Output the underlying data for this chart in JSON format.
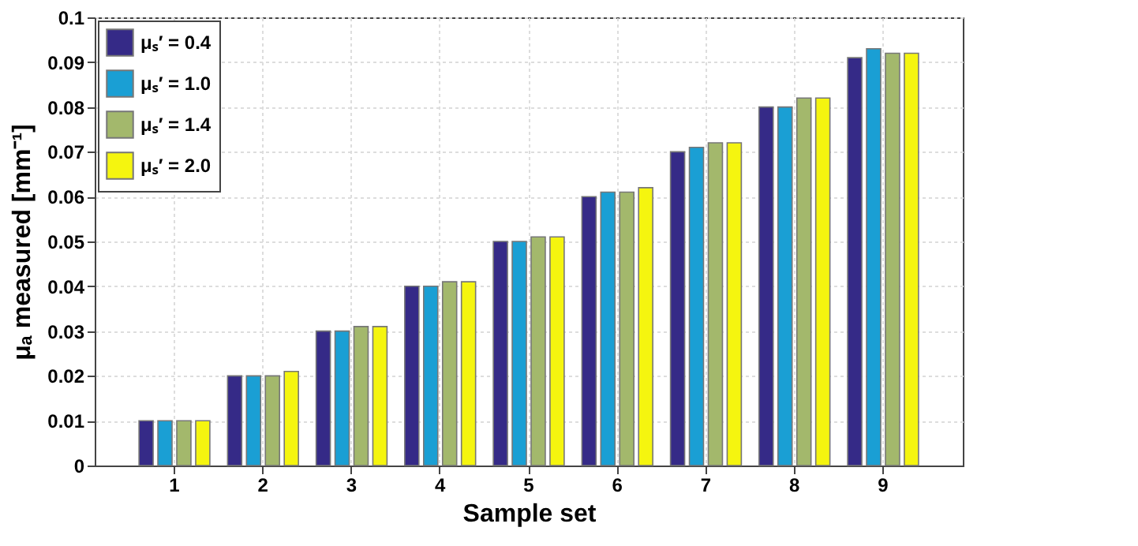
{
  "chart_data": {
    "type": "bar",
    "xlabel": "Sample set",
    "ylabel": "μₐ measured [mm⁻¹]",
    "categories": [
      "1",
      "2",
      "3",
      "4",
      "5",
      "6",
      "7",
      "8",
      "9"
    ],
    "series": [
      {
        "name": "μₛ′ = 0.4",
        "color": "#352a87",
        "values": [
          0.01,
          0.02,
          0.03,
          0.04,
          0.05,
          0.06,
          0.07,
          0.08,
          0.091
        ]
      },
      {
        "name": "μₛ′ = 1.0",
        "color": "#1a9fd4",
        "values": [
          0.01,
          0.02,
          0.03,
          0.04,
          0.05,
          0.061,
          0.071,
          0.08,
          0.093
        ]
      },
      {
        "name": "μₛ′ = 1.4",
        "color": "#a3b86c",
        "values": [
          0.01,
          0.02,
          0.031,
          0.041,
          0.051,
          0.061,
          0.072,
          0.082,
          0.092
        ]
      },
      {
        "name": "μₛ′ = 2.0",
        "color": "#f5f50f",
        "values": [
          0.01,
          0.021,
          0.031,
          0.041,
          0.051,
          0.062,
          0.072,
          0.082,
          0.092
        ]
      }
    ],
    "ylim": [
      0,
      0.1
    ],
    "yticks": [
      0,
      0.01,
      0.02,
      0.03,
      0.04,
      0.05,
      0.06,
      0.07,
      0.08,
      0.09,
      0.1
    ],
    "grid": true,
    "legend": "top left"
  }
}
